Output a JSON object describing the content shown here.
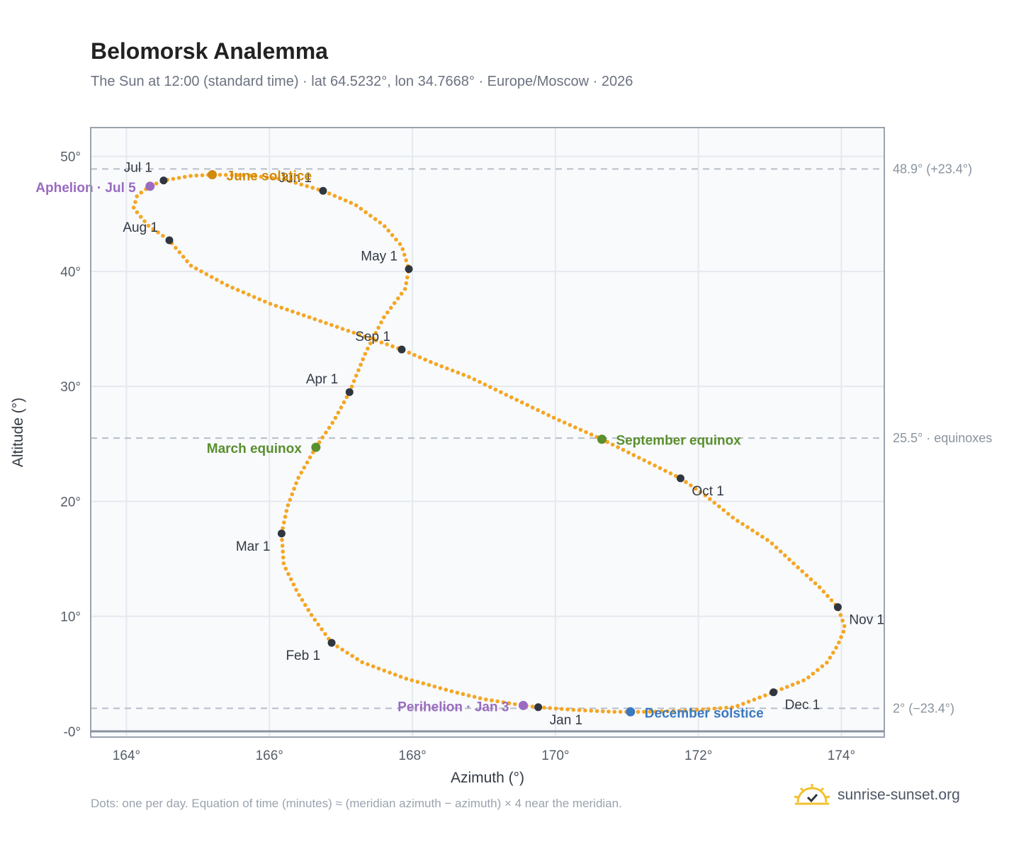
{
  "title": "Belomorsk Analemma",
  "subtitle": "The Sun at 12:00 (standard time) · lat 64.5232°, lon 34.7668° · Europe/Moscow · 2026",
  "footnote": "Dots: one per day. Equation of time (minutes) ≈ (meridian azimuth − azimuth) × 4 near the meridian.",
  "brand": {
    "text": "sunrise-sunset.org",
    "icon": "sun-logo-icon"
  },
  "colors": {
    "path": "#f5a623",
    "month_marker": "#2f3640",
    "solstice_june": "#d18a0c",
    "solstice_december": "#3a78c0",
    "equinox": "#5a8f2e",
    "apsis": "#9a6bc0",
    "grid": "#e5e9ef",
    "reference_line": "#b7bec8",
    "plot_bg": "#f8fafc"
  },
  "chart_data": {
    "type": "scatter",
    "title": "Belomorsk Analemma",
    "xlabel": "Azimuth (°)",
    "ylabel": "Altitude (°)",
    "xlim": [
      163.5,
      174.6
    ],
    "ylim": [
      -0.5,
      52.5
    ],
    "x_ticks": [
      164,
      166,
      168,
      170,
      172,
      174
    ],
    "x_tick_labels": [
      "164°",
      "166°",
      "168°",
      "170°",
      "172°",
      "174°"
    ],
    "y_ticks": [
      0,
      10,
      20,
      30,
      40,
      50
    ],
    "y_tick_labels": [
      "-0°",
      "10°",
      "20°",
      "30°",
      "40°",
      "50°"
    ],
    "grid": true,
    "series": [
      {
        "description": "one dot per day",
        "points": [
          [
            169.76,
            2.1
          ],
          [
            170.3,
            1.85
          ],
          [
            170.8,
            1.7
          ],
          [
            171.3,
            1.7
          ],
          [
            171.8,
            1.8
          ],
          [
            172.5,
            2.1
          ],
          [
            173.05,
            3.4
          ],
          [
            173.5,
            4.5
          ],
          [
            173.8,
            6.0
          ],
          [
            173.95,
            7.5
          ],
          [
            174.05,
            9.0
          ],
          [
            173.95,
            10.8
          ],
          [
            173.7,
            12.5
          ],
          [
            173.35,
            14.5
          ],
          [
            173.0,
            16.5
          ],
          [
            172.5,
            18.5
          ],
          [
            172.1,
            20.5
          ],
          [
            171.75,
            22.0
          ],
          [
            171.2,
            23.7
          ],
          [
            170.65,
            25.4
          ],
          [
            170.0,
            27.2
          ],
          [
            169.4,
            29.0
          ],
          [
            168.8,
            30.8
          ],
          [
            168.3,
            32.0
          ],
          [
            167.85,
            33.2
          ],
          [
            167.3,
            34.4
          ],
          [
            166.7,
            35.7
          ],
          [
            166.0,
            37.2
          ],
          [
            165.4,
            38.8
          ],
          [
            164.9,
            40.5
          ],
          [
            164.6,
            42.7
          ],
          [
            164.3,
            44.0
          ],
          [
            164.1,
            45.5
          ],
          [
            164.15,
            46.6
          ],
          [
            164.33,
            47.4
          ],
          [
            164.52,
            47.9
          ],
          [
            164.9,
            48.3
          ],
          [
            165.2,
            48.4
          ],
          [
            165.7,
            48.35
          ],
          [
            166.2,
            48.0
          ],
          [
            166.75,
            47.0
          ],
          [
            167.2,
            45.8
          ],
          [
            167.6,
            44.0
          ],
          [
            167.85,
            42.2
          ],
          [
            167.95,
            40.2
          ],
          [
            167.9,
            38.5
          ],
          [
            167.6,
            36.0
          ],
          [
            167.35,
            33.0
          ],
          [
            167.12,
            29.5
          ],
          [
            166.9,
            27.0
          ],
          [
            166.65,
            24.7
          ],
          [
            166.4,
            22.0
          ],
          [
            166.25,
            19.5
          ],
          [
            166.17,
            17.2
          ],
          [
            166.2,
            14.5
          ],
          [
            166.4,
            12.0
          ],
          [
            166.6,
            10.0
          ],
          [
            166.87,
            7.7
          ],
          [
            167.3,
            6.0
          ],
          [
            167.9,
            4.6
          ],
          [
            168.6,
            3.4
          ],
          [
            169.0,
            2.8
          ],
          [
            169.55,
            2.25
          ],
          [
            169.76,
            2.1
          ]
        ]
      }
    ],
    "month_markers": [
      {
        "label": "Jan 1",
        "x": 169.76,
        "y": 2.1,
        "anchor": "start",
        "dx": 16,
        "dy": 24
      },
      {
        "label": "Feb 1",
        "x": 166.87,
        "y": 7.7,
        "anchor": "end",
        "dx": -16,
        "dy": 24
      },
      {
        "label": "Mar 1",
        "x": 166.17,
        "y": 17.2,
        "anchor": "end",
        "dx": -16,
        "dy": 24
      },
      {
        "label": "Apr 1",
        "x": 167.12,
        "y": 29.5,
        "anchor": "end",
        "dx": -16,
        "dy": -12
      },
      {
        "label": "May 1",
        "x": 167.95,
        "y": 40.2,
        "anchor": "end",
        "dx": -16,
        "dy": -12
      },
      {
        "label": "Jun 1",
        "x": 166.75,
        "y": 47.0,
        "anchor": "end",
        "dx": -16,
        "dy": -12
      },
      {
        "label": "Jul 1",
        "x": 164.52,
        "y": 47.9,
        "anchor": "end",
        "dx": -16,
        "dy": -12
      },
      {
        "label": "Aug 1",
        "x": 164.6,
        "y": 42.7,
        "anchor": "end",
        "dx": -16,
        "dy": -12
      },
      {
        "label": "Sep 1",
        "x": 167.85,
        "y": 33.2,
        "anchor": "end",
        "dx": -16,
        "dy": -12
      },
      {
        "label": "Oct 1",
        "x": 171.75,
        "y": 22.0,
        "anchor": "start",
        "dx": 16,
        "dy": 24
      },
      {
        "label": "Nov 1",
        "x": 173.95,
        "y": 10.8,
        "anchor": "start",
        "dx": 16,
        "dy": 24
      },
      {
        "label": "Dec 1",
        "x": 173.05,
        "y": 3.4,
        "anchor": "start",
        "dx": 16,
        "dy": 24
      }
    ],
    "events": [
      {
        "label": "June solstice",
        "x": 165.2,
        "y": 48.4,
        "color": "#d18a0c",
        "anchor": "start",
        "dx": 20,
        "dy": 8
      },
      {
        "label": "September equinox",
        "x": 170.65,
        "y": 25.4,
        "color": "#5a8f2e",
        "anchor": "start",
        "dx": 20,
        "dy": 8
      },
      {
        "label": "March equinox",
        "x": 166.65,
        "y": 24.7,
        "color": "#5a8f2e",
        "anchor": "end",
        "dx": -20,
        "dy": 8
      },
      {
        "label": "December solstice",
        "x": 171.05,
        "y": 1.7,
        "color": "#3a78c0",
        "anchor": "start",
        "dx": 20,
        "dy": 8
      },
      {
        "label": "Aphelion · Jul 5",
        "x": 164.33,
        "y": 47.4,
        "color": "#9a6bc0",
        "anchor": "end",
        "dx": -20,
        "dy": 8
      },
      {
        "label": "Perihelion · Jan 3",
        "x": 169.55,
        "y": 2.25,
        "color": "#9a6bc0",
        "anchor": "end",
        "dx": -20,
        "dy": 8
      }
    ],
    "reference_lines": [
      {
        "y": 48.9,
        "label": "48.9° (+23.4°)"
      },
      {
        "y": 25.5,
        "label": "25.5° · equinoxes"
      },
      {
        "y": 2.0,
        "label": "2° (−23.4°)"
      }
    ]
  }
}
